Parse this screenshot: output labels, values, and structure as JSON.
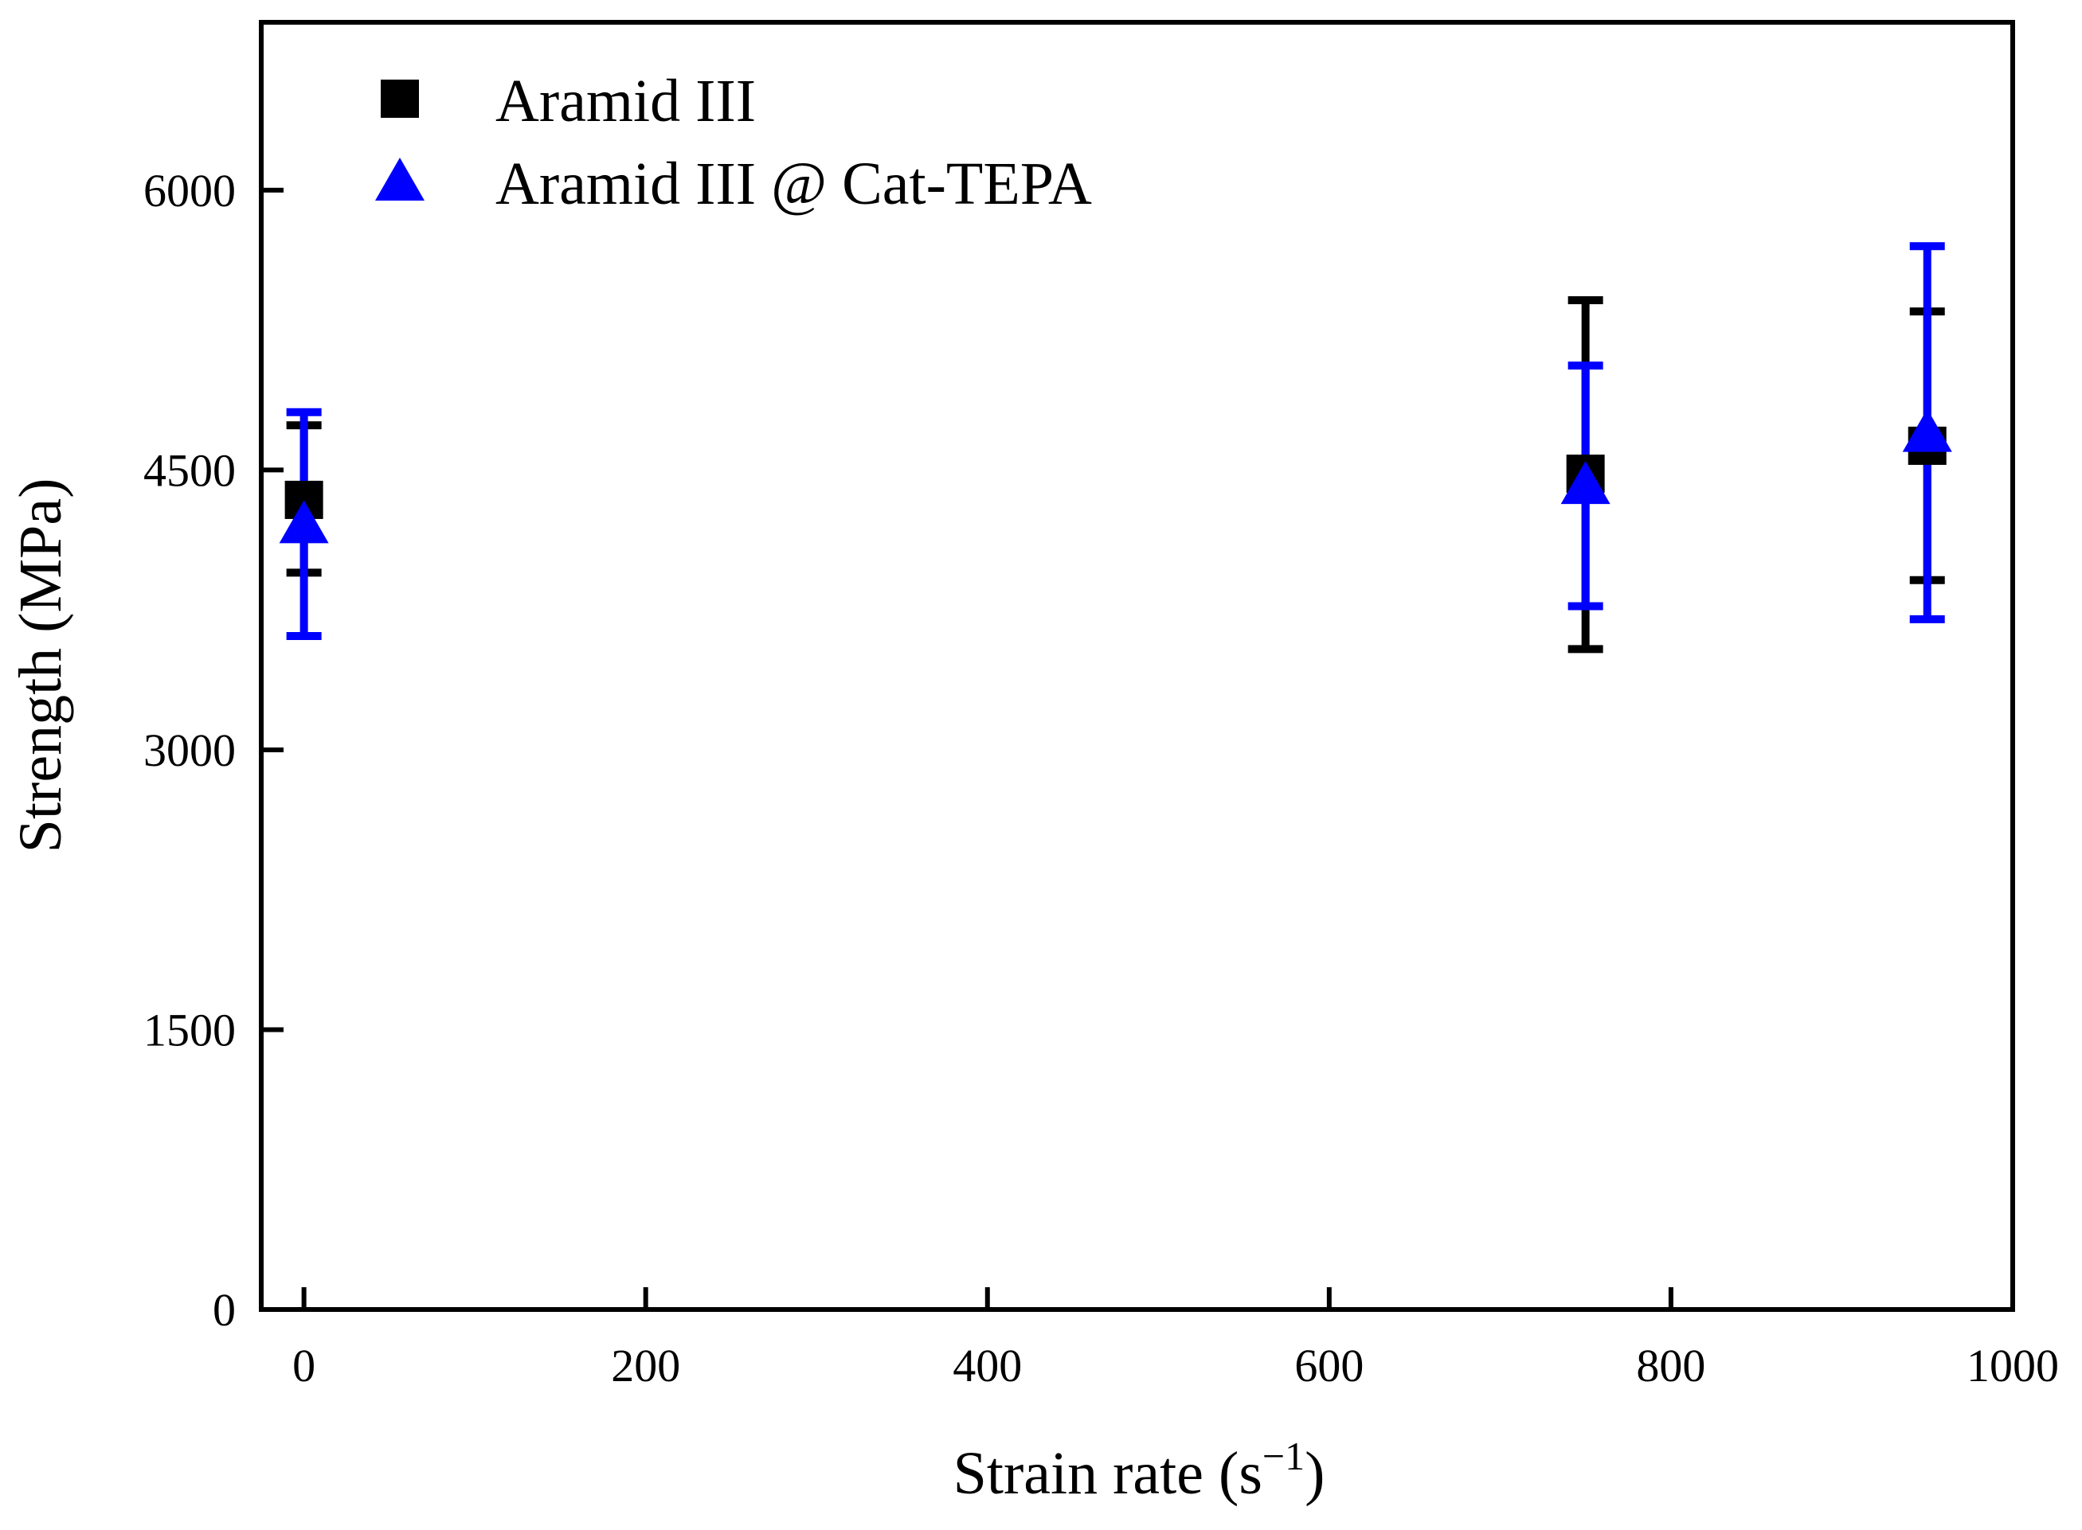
{
  "chart_data": {
    "type": "scatter",
    "title": "",
    "xlabel": "Strain rate (s",
    "xlabel_sup": "−1",
    "xlabel_close": ")",
    "ylabel": "Strength (MPa)",
    "xlim": [
      -25,
      1000
    ],
    "ylim": [
      0,
      6900
    ],
    "xticks": [
      0,
      200,
      400,
      600,
      800,
      1000
    ],
    "yticks": [
      0,
      1500,
      3000,
      4500,
      6000
    ],
    "legend_position": "top-left",
    "series": [
      {
        "name": "Aramid III",
        "marker": "square",
        "color": "#000000",
        "points": [
          {
            "x": 0,
            "y": 4340,
            "err_low": 3950,
            "err_high": 4740
          },
          {
            "x": 750,
            "y": 4480,
            "err_low": 3540,
            "err_high": 5410
          },
          {
            "x": 950,
            "y": 4630,
            "err_low": 3910,
            "err_high": 5350
          }
        ]
      },
      {
        "name": "Aramid III @ Cat-TEPA",
        "marker": "triangle",
        "color": "#0000ff",
        "points": [
          {
            "x": 0,
            "y": 4210,
            "err_low": 3610,
            "err_high": 4810
          },
          {
            "x": 750,
            "y": 4420,
            "err_low": 3770,
            "err_high": 5060
          },
          {
            "x": 950,
            "y": 4700,
            "err_low": 3700,
            "err_high": 5700
          }
        ]
      }
    ]
  }
}
